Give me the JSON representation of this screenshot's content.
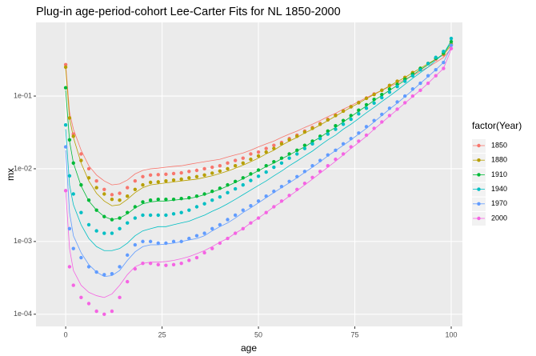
{
  "chart_data": {
    "type": "scatter",
    "title": "Plug-in age-period-cohort Lee-Carter Fits for NL 1850-2000",
    "x_label": "age",
    "y_label": "mx",
    "legend_title": "factor(Year)",
    "legend_position": "right",
    "log_y": true,
    "grid": true,
    "xlim": [
      -7.7,
      102.9
    ],
    "ylim": [
      6.8e-05,
      1.03
    ],
    "xticks": [
      0,
      25,
      50,
      75,
      100
    ],
    "yticks": [
      {
        "value": 0.0001,
        "label": "1e-04"
      },
      {
        "value": 0.001,
        "label": "1e-03"
      },
      {
        "value": 0.01,
        "label": "1e-02"
      },
      {
        "value": 0.1,
        "label": "1e-01"
      }
    ],
    "x": [
      0,
      1,
      2,
      4,
      6,
      8,
      10,
      12,
      14,
      16,
      18,
      20,
      22,
      24,
      26,
      28,
      30,
      32,
      34,
      36,
      38,
      40,
      42,
      44,
      46,
      48,
      50,
      52,
      54,
      56,
      58,
      60,
      62,
      64,
      66,
      68,
      70,
      72,
      74,
      76,
      78,
      80,
      82,
      84,
      86,
      88,
      90,
      92,
      94,
      96,
      98,
      100
    ],
    "series": [
      {
        "name": "1850",
        "color": "#F8766D",
        "values": [
          0.27,
          0.05,
          0.03,
          0.016,
          0.01,
          0.0068,
          0.0052,
          0.0044,
          0.0046,
          0.0055,
          0.0068,
          0.0078,
          0.0082,
          0.0083,
          0.0084,
          0.0086,
          0.0088,
          0.0092,
          0.0095,
          0.01,
          0.0105,
          0.011,
          0.012,
          0.013,
          0.014,
          0.016,
          0.017,
          0.019,
          0.021,
          0.023,
          0.026,
          0.029,
          0.033,
          0.037,
          0.042,
          0.048,
          0.055,
          0.063,
          0.072,
          0.082,
          0.094,
          0.107,
          0.12,
          0.14,
          0.16,
          0.18,
          0.21,
          0.24,
          0.28,
          0.32,
          0.37,
          0.5
        ],
        "fit": [
          0.27,
          0.06,
          0.035,
          0.018,
          0.011,
          0.0082,
          0.0068,
          0.006,
          0.0062,
          0.007,
          0.0085,
          0.0095,
          0.01,
          0.0102,
          0.0105,
          0.0108,
          0.011,
          0.0115,
          0.012,
          0.0125,
          0.013,
          0.0135,
          0.0145,
          0.0155,
          0.0165,
          0.018,
          0.02,
          0.022,
          0.024,
          0.027,
          0.03,
          0.033,
          0.037,
          0.041,
          0.046,
          0.052,
          0.058,
          0.066,
          0.074,
          0.084,
          0.095,
          0.107,
          0.12,
          0.135,
          0.15,
          0.17,
          0.19,
          0.22,
          0.25,
          0.29,
          0.34,
          0.45
        ]
      },
      {
        "name": "1880",
        "color": "#B79F00",
        "values": [
          0.25,
          0.05,
          0.028,
          0.013,
          0.0075,
          0.0055,
          0.0045,
          0.0038,
          0.0037,
          0.0042,
          0.0052,
          0.006,
          0.0065,
          0.0066,
          0.0068,
          0.007,
          0.0072,
          0.0075,
          0.0078,
          0.0082,
          0.0087,
          0.0093,
          0.01,
          0.011,
          0.012,
          0.0135,
          0.015,
          0.017,
          0.019,
          0.022,
          0.025,
          0.028,
          0.032,
          0.036,
          0.041,
          0.047,
          0.054,
          0.062,
          0.071,
          0.081,
          0.093,
          0.105,
          0.12,
          0.14,
          0.16,
          0.18,
          0.21,
          0.24,
          0.28,
          0.33,
          0.38,
          0.52
        ],
        "fit": [
          0.24,
          0.05,
          0.027,
          0.012,
          0.0068,
          0.0046,
          0.0036,
          0.0031,
          0.0032,
          0.0038,
          0.0047,
          0.0055,
          0.006,
          0.0062,
          0.0064,
          0.0066,
          0.0068,
          0.007,
          0.0072,
          0.0076,
          0.008,
          0.0086,
          0.0093,
          0.0102,
          0.0112,
          0.0125,
          0.014,
          0.016,
          0.018,
          0.021,
          0.024,
          0.027,
          0.031,
          0.035,
          0.04,
          0.046,
          0.053,
          0.061,
          0.07,
          0.08,
          0.092,
          0.105,
          0.12,
          0.138,
          0.158,
          0.18,
          0.21,
          0.24,
          0.28,
          0.32,
          0.37,
          0.5
        ]
      },
      {
        "name": "1910",
        "color": "#00BA38",
        "values": [
          0.13,
          0.025,
          0.012,
          0.006,
          0.0037,
          0.0027,
          0.0022,
          0.002,
          0.0021,
          0.0025,
          0.003,
          0.0035,
          0.0037,
          0.0038,
          0.0038,
          0.0038,
          0.0039,
          0.004,
          0.0042,
          0.0045,
          0.0049,
          0.0054,
          0.006,
          0.0067,
          0.0075,
          0.0085,
          0.0096,
          0.011,
          0.0125,
          0.014,
          0.016,
          0.018,
          0.021,
          0.024,
          0.028,
          0.033,
          0.039,
          0.046,
          0.054,
          0.064,
          0.076,
          0.09,
          0.105,
          0.125,
          0.145,
          0.17,
          0.2,
          0.24,
          0.28,
          0.33,
          0.39,
          0.56
        ],
        "fit": [
          0.12,
          0.024,
          0.012,
          0.0058,
          0.0036,
          0.0027,
          0.0022,
          0.002,
          0.0021,
          0.0024,
          0.0029,
          0.0033,
          0.0035,
          0.0036,
          0.0036,
          0.0037,
          0.0038,
          0.0039,
          0.0041,
          0.0044,
          0.0048,
          0.0052,
          0.0058,
          0.0065,
          0.0073,
          0.0083,
          0.0094,
          0.0107,
          0.012,
          0.0137,
          0.0155,
          0.0177,
          0.02,
          0.0235,
          0.027,
          0.032,
          0.037,
          0.044,
          0.052,
          0.062,
          0.073,
          0.087,
          0.102,
          0.12,
          0.14,
          0.165,
          0.195,
          0.23,
          0.27,
          0.32,
          0.38,
          0.54
        ]
      },
      {
        "name": "1940",
        "color": "#00BFC4",
        "values": [
          0.04,
          0.008,
          0.0045,
          0.0025,
          0.0017,
          0.0014,
          0.0013,
          0.0013,
          0.0015,
          0.0018,
          0.0021,
          0.0023,
          0.0023,
          0.0023,
          0.0023,
          0.0024,
          0.0025,
          0.0027,
          0.003,
          0.0033,
          0.0037,
          0.0041,
          0.0047,
          0.0053,
          0.006,
          0.0069,
          0.0079,
          0.009,
          0.0105,
          0.012,
          0.014,
          0.016,
          0.019,
          0.022,
          0.026,
          0.03,
          0.035,
          0.041,
          0.048,
          0.057,
          0.068,
          0.08,
          0.095,
          0.113,
          0.135,
          0.16,
          0.19,
          0.23,
          0.28,
          0.34,
          0.41,
          0.62
        ],
        "fit": [
          0.035,
          0.006,
          0.0032,
          0.0017,
          0.0011,
          0.00085,
          0.00075,
          0.00075,
          0.0008,
          0.00095,
          0.0012,
          0.0014,
          0.0015,
          0.0016,
          0.0016,
          0.0017,
          0.0018,
          0.0019,
          0.0021,
          0.0023,
          0.0026,
          0.0029,
          0.0033,
          0.0038,
          0.0044,
          0.0051,
          0.0059,
          0.0068,
          0.008,
          0.0093,
          0.011,
          0.0128,
          0.015,
          0.0175,
          0.021,
          0.025,
          0.029,
          0.035,
          0.041,
          0.049,
          0.059,
          0.07,
          0.084,
          0.1,
          0.12,
          0.145,
          0.175,
          0.21,
          0.25,
          0.31,
          0.38,
          0.58
        ]
      },
      {
        "name": "1970",
        "color": "#619CFF",
        "values": [
          0.02,
          0.0015,
          0.0008,
          0.0006,
          0.00045,
          0.00038,
          0.00035,
          0.00036,
          0.00045,
          0.00065,
          0.0009,
          0.001,
          0.001,
          0.00095,
          0.00095,
          0.001,
          0.001,
          0.0011,
          0.0012,
          0.0013,
          0.0015,
          0.0017,
          0.002,
          0.0023,
          0.0027,
          0.0031,
          0.0036,
          0.0042,
          0.0049,
          0.0057,
          0.0067,
          0.0078,
          0.0092,
          0.011,
          0.013,
          0.0155,
          0.018,
          0.022,
          0.026,
          0.031,
          0.038,
          0.046,
          0.056,
          0.068,
          0.083,
          0.1,
          0.125,
          0.15,
          0.19,
          0.23,
          0.29,
          0.5
        ],
        "fit": [
          0.018,
          0.0025,
          0.0012,
          0.0007,
          0.00048,
          0.00038,
          0.00033,
          0.00034,
          0.0004,
          0.00055,
          0.00072,
          0.00085,
          0.0009,
          0.0009,
          0.00092,
          0.00095,
          0.001,
          0.00105,
          0.0011,
          0.0012,
          0.0014,
          0.0016,
          0.0018,
          0.0021,
          0.0025,
          0.0029,
          0.0034,
          0.004,
          0.0047,
          0.0055,
          0.0064,
          0.0075,
          0.0089,
          0.0105,
          0.0125,
          0.015,
          0.0178,
          0.021,
          0.025,
          0.03,
          0.036,
          0.044,
          0.054,
          0.066,
          0.08,
          0.098,
          0.12,
          0.15,
          0.185,
          0.23,
          0.29,
          0.48
        ]
      },
      {
        "name": "2000",
        "color": "#F564E3",
        "values": [
          0.005,
          0.00045,
          0.00025,
          0.00017,
          0.00014,
          0.00011,
          0.0001,
          0.00011,
          0.00017,
          0.00028,
          0.00042,
          0.0005,
          0.0005,
          0.00048,
          0.00047,
          0.00048,
          0.0005,
          0.00055,
          0.0006,
          0.0007,
          0.0008,
          0.00095,
          0.0011,
          0.0013,
          0.0015,
          0.0018,
          0.0021,
          0.0025,
          0.003,
          0.0036,
          0.0043,
          0.0052,
          0.0063,
          0.0076,
          0.0092,
          0.011,
          0.0135,
          0.016,
          0.02,
          0.024,
          0.029,
          0.036,
          0.044,
          0.054,
          0.066,
          0.081,
          0.1,
          0.12,
          0.15,
          0.19,
          0.24,
          0.45
        ],
        "fit": [
          0.005,
          0.0008,
          0.0004,
          0.00025,
          0.0002,
          0.00018,
          0.00017,
          0.00019,
          0.00025,
          0.00035,
          0.00045,
          0.0005,
          0.00052,
          0.00052,
          0.00053,
          0.00055,
          0.00058,
          0.00062,
          0.00068,
          0.00075,
          0.00085,
          0.00098,
          0.0011,
          0.0013,
          0.0015,
          0.0018,
          0.0021,
          0.0025,
          0.003,
          0.0035,
          0.0042,
          0.005,
          0.006,
          0.0072,
          0.0087,
          0.0105,
          0.0127,
          0.0155,
          0.019,
          0.023,
          0.028,
          0.035,
          0.043,
          0.053,
          0.065,
          0.08,
          0.098,
          0.12,
          0.15,
          0.19,
          0.24,
          0.44
        ]
      }
    ]
  }
}
